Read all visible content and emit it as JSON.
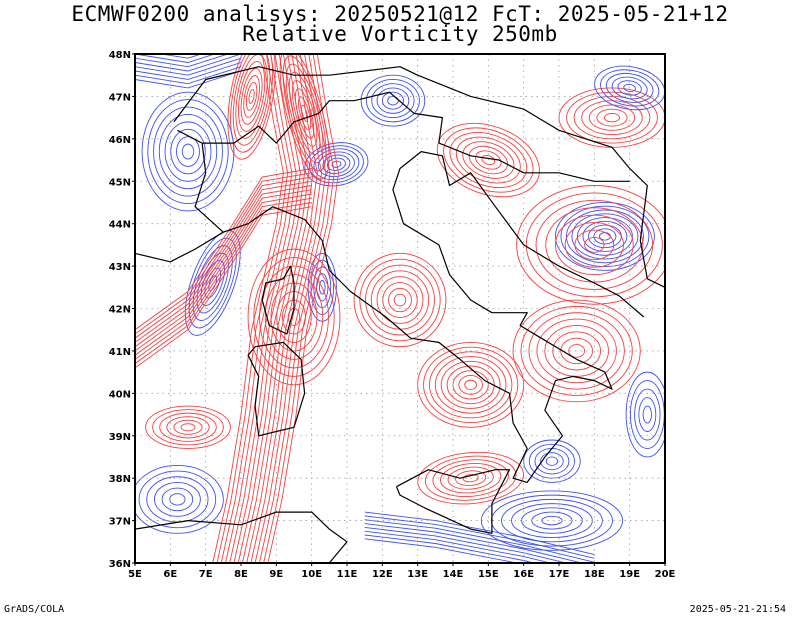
{
  "title_line1": "ECMWF0200 analisys: 20250521@12 FcT: 2025-05-21+12",
  "title_line2": "Relative Vorticity 250mb",
  "footer_left": "GrADS/COLA",
  "footer_right": "2025-05-21-21:54",
  "map": {
    "lon_range": [
      5,
      20
    ],
    "lat_range": [
      36,
      48
    ],
    "lat_labels": [
      "48N",
      "47N",
      "46N",
      "45N",
      "44N",
      "43N",
      "42N",
      "41N",
      "40N",
      "39N",
      "38N",
      "37N",
      "36N"
    ],
    "lon_labels": [
      "5E",
      "6E",
      "7E",
      "8E",
      "9E",
      "10E",
      "11E",
      "12E",
      "13E",
      "14E",
      "15E",
      "16E",
      "17E",
      "18E",
      "19E",
      "20E"
    ],
    "grid": "dotted",
    "colors": {
      "positive": "#ff3c3c",
      "negative": "#3c50ff",
      "coastline": "#000000",
      "grid": "#a0a0a0"
    }
  }
}
